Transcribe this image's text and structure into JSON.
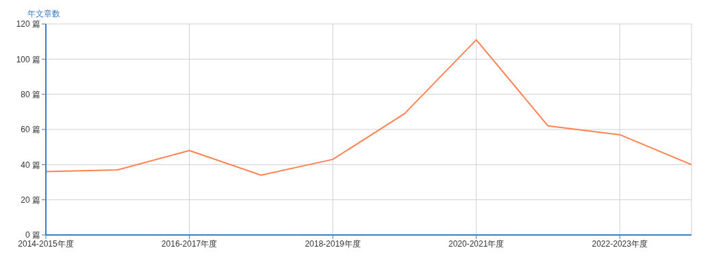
{
  "chart_data": {
    "type": "line",
    "ylabel": "年文章数",
    "categories": [
      "2014-2015年度",
      null,
      "2016-2017年度",
      null,
      "2018-2019年度",
      null,
      "2020-2021年度",
      null,
      "2022-2023年度",
      null
    ],
    "series": [
      {
        "color": "#ff8352",
        "values": [
          36,
          37,
          48,
          34,
          43,
          69,
          111,
          62,
          57,
          40
        ]
      }
    ],
    "ylim": [
      0,
      120
    ],
    "yticks": [
      {
        "value": 0,
        "label": "0 篇"
      },
      {
        "value": 20,
        "label": "20 篇"
      },
      {
        "value": 40,
        "label": "40 篇"
      },
      {
        "value": 60,
        "label": "60 篇"
      },
      {
        "value": 80,
        "label": "80 篇"
      },
      {
        "value": 100,
        "label": "100 篇"
      },
      {
        "value": 120,
        "label": "120 篇"
      }
    ],
    "grid": true,
    "legend": false,
    "marker": "none",
    "line_style": "solid"
  }
}
